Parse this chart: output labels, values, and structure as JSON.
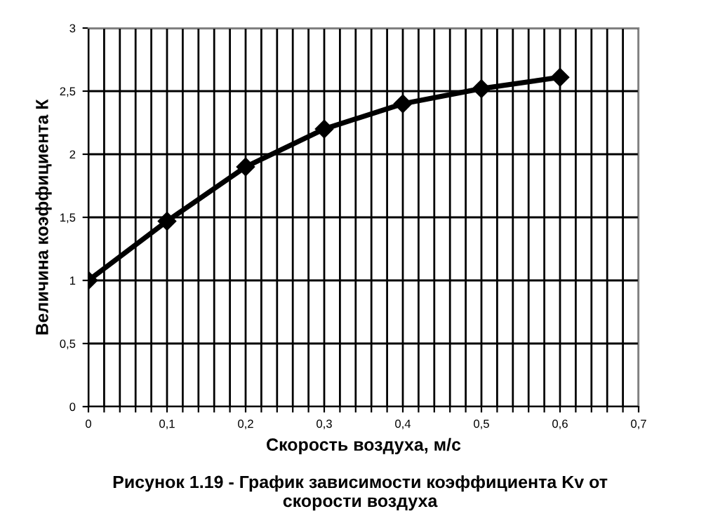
{
  "chart_data": {
    "type": "line",
    "xlabel": "Скорость воздуха, м/с",
    "ylabel": "Величина коэффициента К",
    "annotations": [
      "Рисунок 1.19 - График зависимости коэффициента Kv от\nскорости воздуха"
    ],
    "series": [
      {
        "color": "#000000",
        "x": [
          0,
          0.1,
          0.2,
          0.3,
          0.4,
          0.5,
          0.6
        ],
        "values": [
          1,
          1.47,
          1.9,
          2.2,
          2.4,
          2.52,
          2.61
        ]
      }
    ],
    "marker": "diamond",
    "line_style": "solid",
    "grid": true,
    "legend": false,
    "xlim": [
      0,
      0.7
    ],
    "xticks": [
      0,
      {
        "value": 0.02,
        "label": null
      },
      {
        "value": 0.04,
        "label": null
      },
      {
        "value": 0.06,
        "label": null
      },
      {
        "value": 0.08,
        "label": null
      },
      {
        "value": 0.1,
        "label": "0,1"
      },
      {
        "value": 0.12,
        "label": null
      },
      {
        "value": 0.14,
        "label": null
      },
      {
        "value": 0.16,
        "label": null
      },
      {
        "value": 0.18,
        "label": null
      },
      {
        "value": 0.2,
        "label": "0,2"
      },
      {
        "value": 0.22,
        "label": null
      },
      {
        "value": 0.24,
        "label": null
      },
      {
        "value": 0.26,
        "label": null
      },
      {
        "value": 0.28,
        "label": null
      },
      {
        "value": 0.3,
        "label": "0,3"
      },
      {
        "value": 0.32,
        "label": null
      },
      {
        "value": 0.34,
        "label": null
      },
      {
        "value": 0.36,
        "label": null
      },
      {
        "value": 0.38,
        "label": null
      },
      {
        "value": 0.4,
        "label": "0,4"
      },
      {
        "value": 0.42,
        "label": null
      },
      {
        "value": 0.44,
        "label": null
      },
      {
        "value": 0.46,
        "label": null
      },
      {
        "value": 0.48,
        "label": null
      },
      {
        "value": 0.5,
        "label": "0,5"
      },
      {
        "value": 0.52,
        "label": null
      },
      {
        "value": 0.54,
        "label": null
      },
      {
        "value": 0.56,
        "label": null
      },
      {
        "value": 0.58,
        "label": null
      },
      {
        "value": 0.6,
        "label": "0,6"
      },
      {
        "value": 0.62,
        "label": null
      },
      {
        "value": 0.64,
        "label": null
      },
      {
        "value": 0.66,
        "label": null
      },
      {
        "value": 0.68,
        "label": null
      },
      {
        "value": 0.7,
        "label": "0,7"
      }
    ],
    "ylim": [
      0,
      3
    ],
    "yticks": [
      0,
      {
        "value": 0.5,
        "label": "0,5"
      },
      1,
      {
        "value": 1.5,
        "label": "1,5"
      },
      2,
      {
        "value": 2.5,
        "label": "2,5"
      },
      3
    ]
  }
}
